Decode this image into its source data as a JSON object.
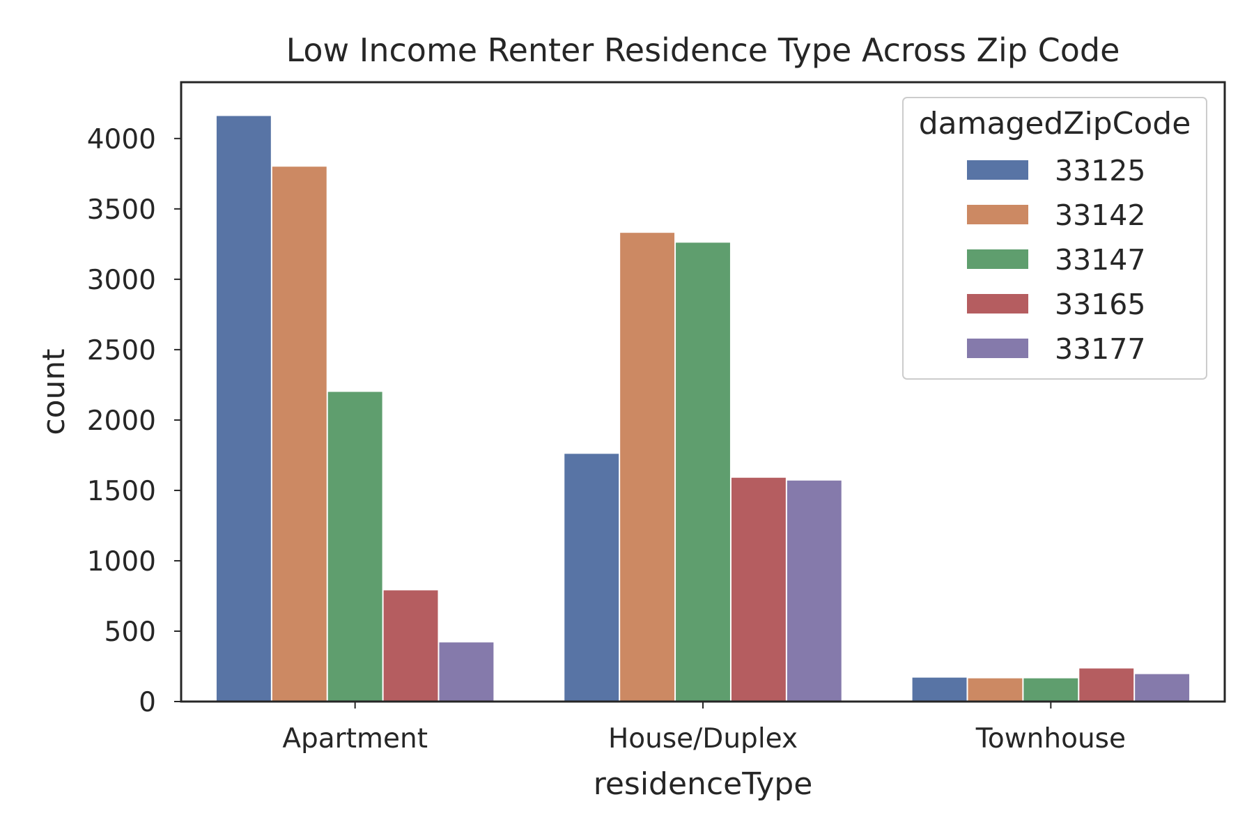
{
  "chart_data": {
    "type": "bar",
    "title": "Low Income Renter Residence Type Across Zip Code",
    "xlabel": "residenceType",
    "ylabel": "count",
    "categories": [
      "Apartment",
      "House/Duplex",
      "Townhouse"
    ],
    "ylim": [
      0,
      4400
    ],
    "yticks": [
      0,
      500,
      1000,
      1500,
      2000,
      2500,
      3000,
      3500,
      4000
    ],
    "grid": false,
    "legend": {
      "title": "damagedZipCode",
      "placement": "top-right"
    },
    "series": [
      {
        "name": "33125",
        "color": "#5874a5",
        "values": [
          4160,
          1760,
          170
        ]
      },
      {
        "name": "33142",
        "color": "#cc8963",
        "values": [
          3800,
          3330,
          165
        ]
      },
      {
        "name": "33147",
        "color": "#5f9e6e",
        "values": [
          2200,
          3260,
          165
        ]
      },
      {
        "name": "33165",
        "color": "#b55d60",
        "values": [
          790,
          1590,
          235
        ]
      },
      {
        "name": "33177",
        "color": "#857aab",
        "values": [
          420,
          1570,
          195
        ]
      }
    ]
  }
}
